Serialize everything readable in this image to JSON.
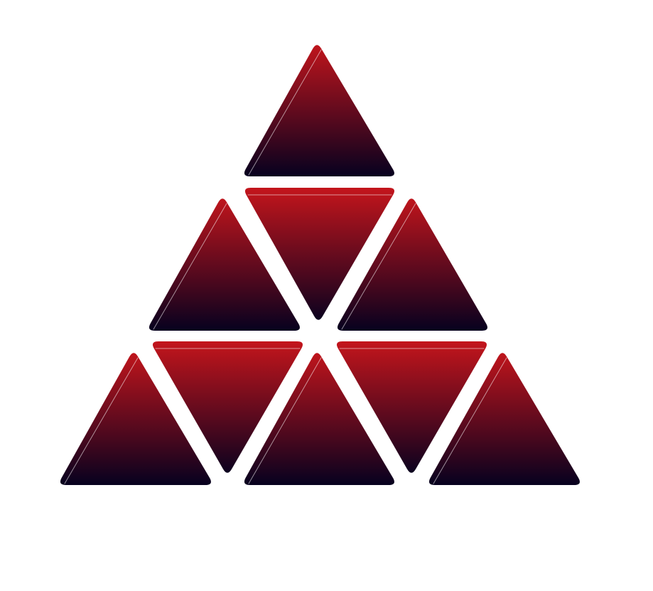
{
  "canvas": {
    "background": "#ffffff"
  },
  "logo": {
    "description_text": "",
    "gradient": {
      "top_color": "#c4151c",
      "bottom_color": "#07011f"
    },
    "highlight_color": "#ffffff",
    "tiles": [
      {
        "id": "r1-up",
        "row": 1,
        "orientation": "up"
      },
      {
        "id": "r2-up-left",
        "row": 2,
        "orientation": "up"
      },
      {
        "id": "r2-down",
        "row": 2,
        "orientation": "down"
      },
      {
        "id": "r2-up-right",
        "row": 2,
        "orientation": "up"
      },
      {
        "id": "r3-up-1",
        "row": 3,
        "orientation": "up"
      },
      {
        "id": "r3-down-1",
        "row": 3,
        "orientation": "down"
      },
      {
        "id": "r3-up-2",
        "row": 3,
        "orientation": "up"
      },
      {
        "id": "r3-down-2",
        "row": 3,
        "orientation": "down"
      },
      {
        "id": "r3-up-3",
        "row": 3,
        "orientation": "up"
      }
    ]
  }
}
